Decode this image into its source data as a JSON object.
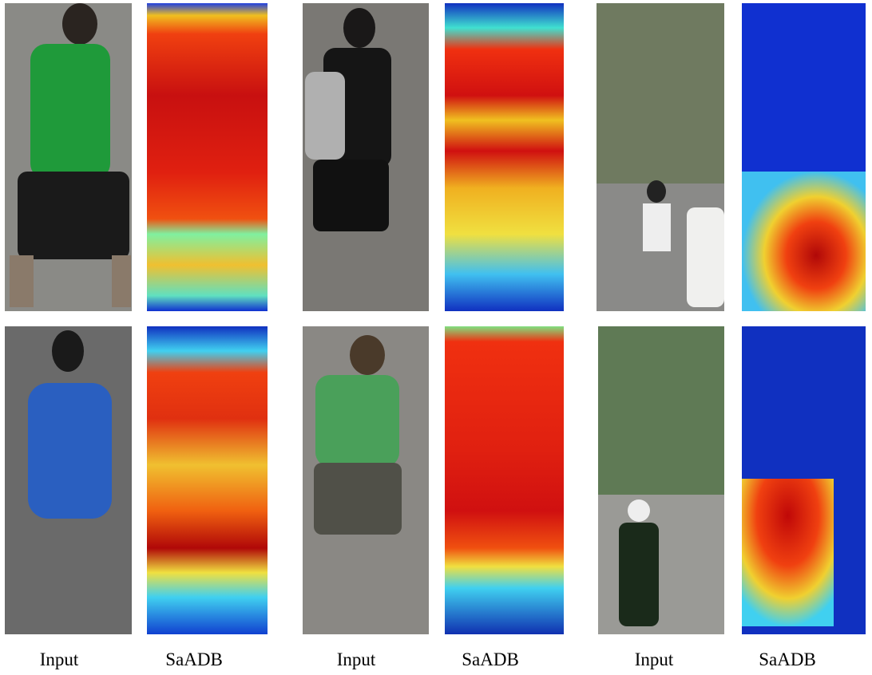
{
  "labels": [
    "Input",
    "SaADB",
    "Input",
    "SaADB",
    "Input",
    "SaADB"
  ]
}
